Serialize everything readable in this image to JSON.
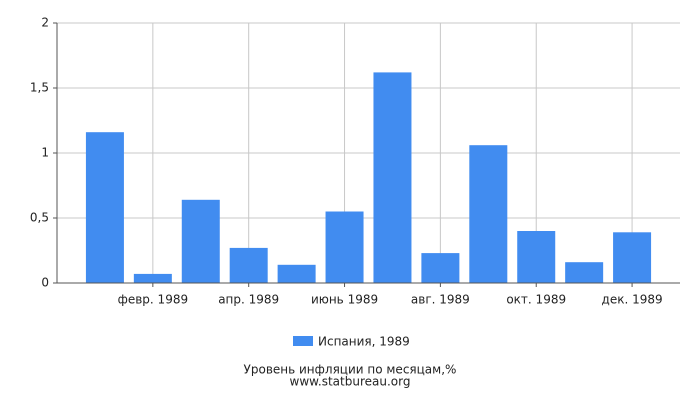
{
  "chart_data": {
    "type": "bar",
    "title": "Уровень инфляции по месяцам,%",
    "source": "www.statbureau.org",
    "categories": [
      null,
      "февр. 1989",
      null,
      "апр. 1989",
      null,
      "июнь 1989",
      null,
      "авг. 1989",
      null,
      "окт. 1989",
      null,
      "дек. 1989"
    ],
    "series": [
      {
        "name": "Испания, 1989",
        "color": "#418cf0",
        "values": [
          1.16,
          0.07,
          0.64,
          0.27,
          0.14,
          0.55,
          1.62,
          0.23,
          1.06,
          0.4,
          0.16,
          0.39
        ]
      }
    ],
    "ylim": [
      0,
      2
    ],
    "yticks": [
      0,
      {
        "value": 0.5,
        "label": "0,5"
      },
      1,
      {
        "value": 1.5,
        "label": "1,5"
      },
      2
    ],
    "grid": true
  }
}
